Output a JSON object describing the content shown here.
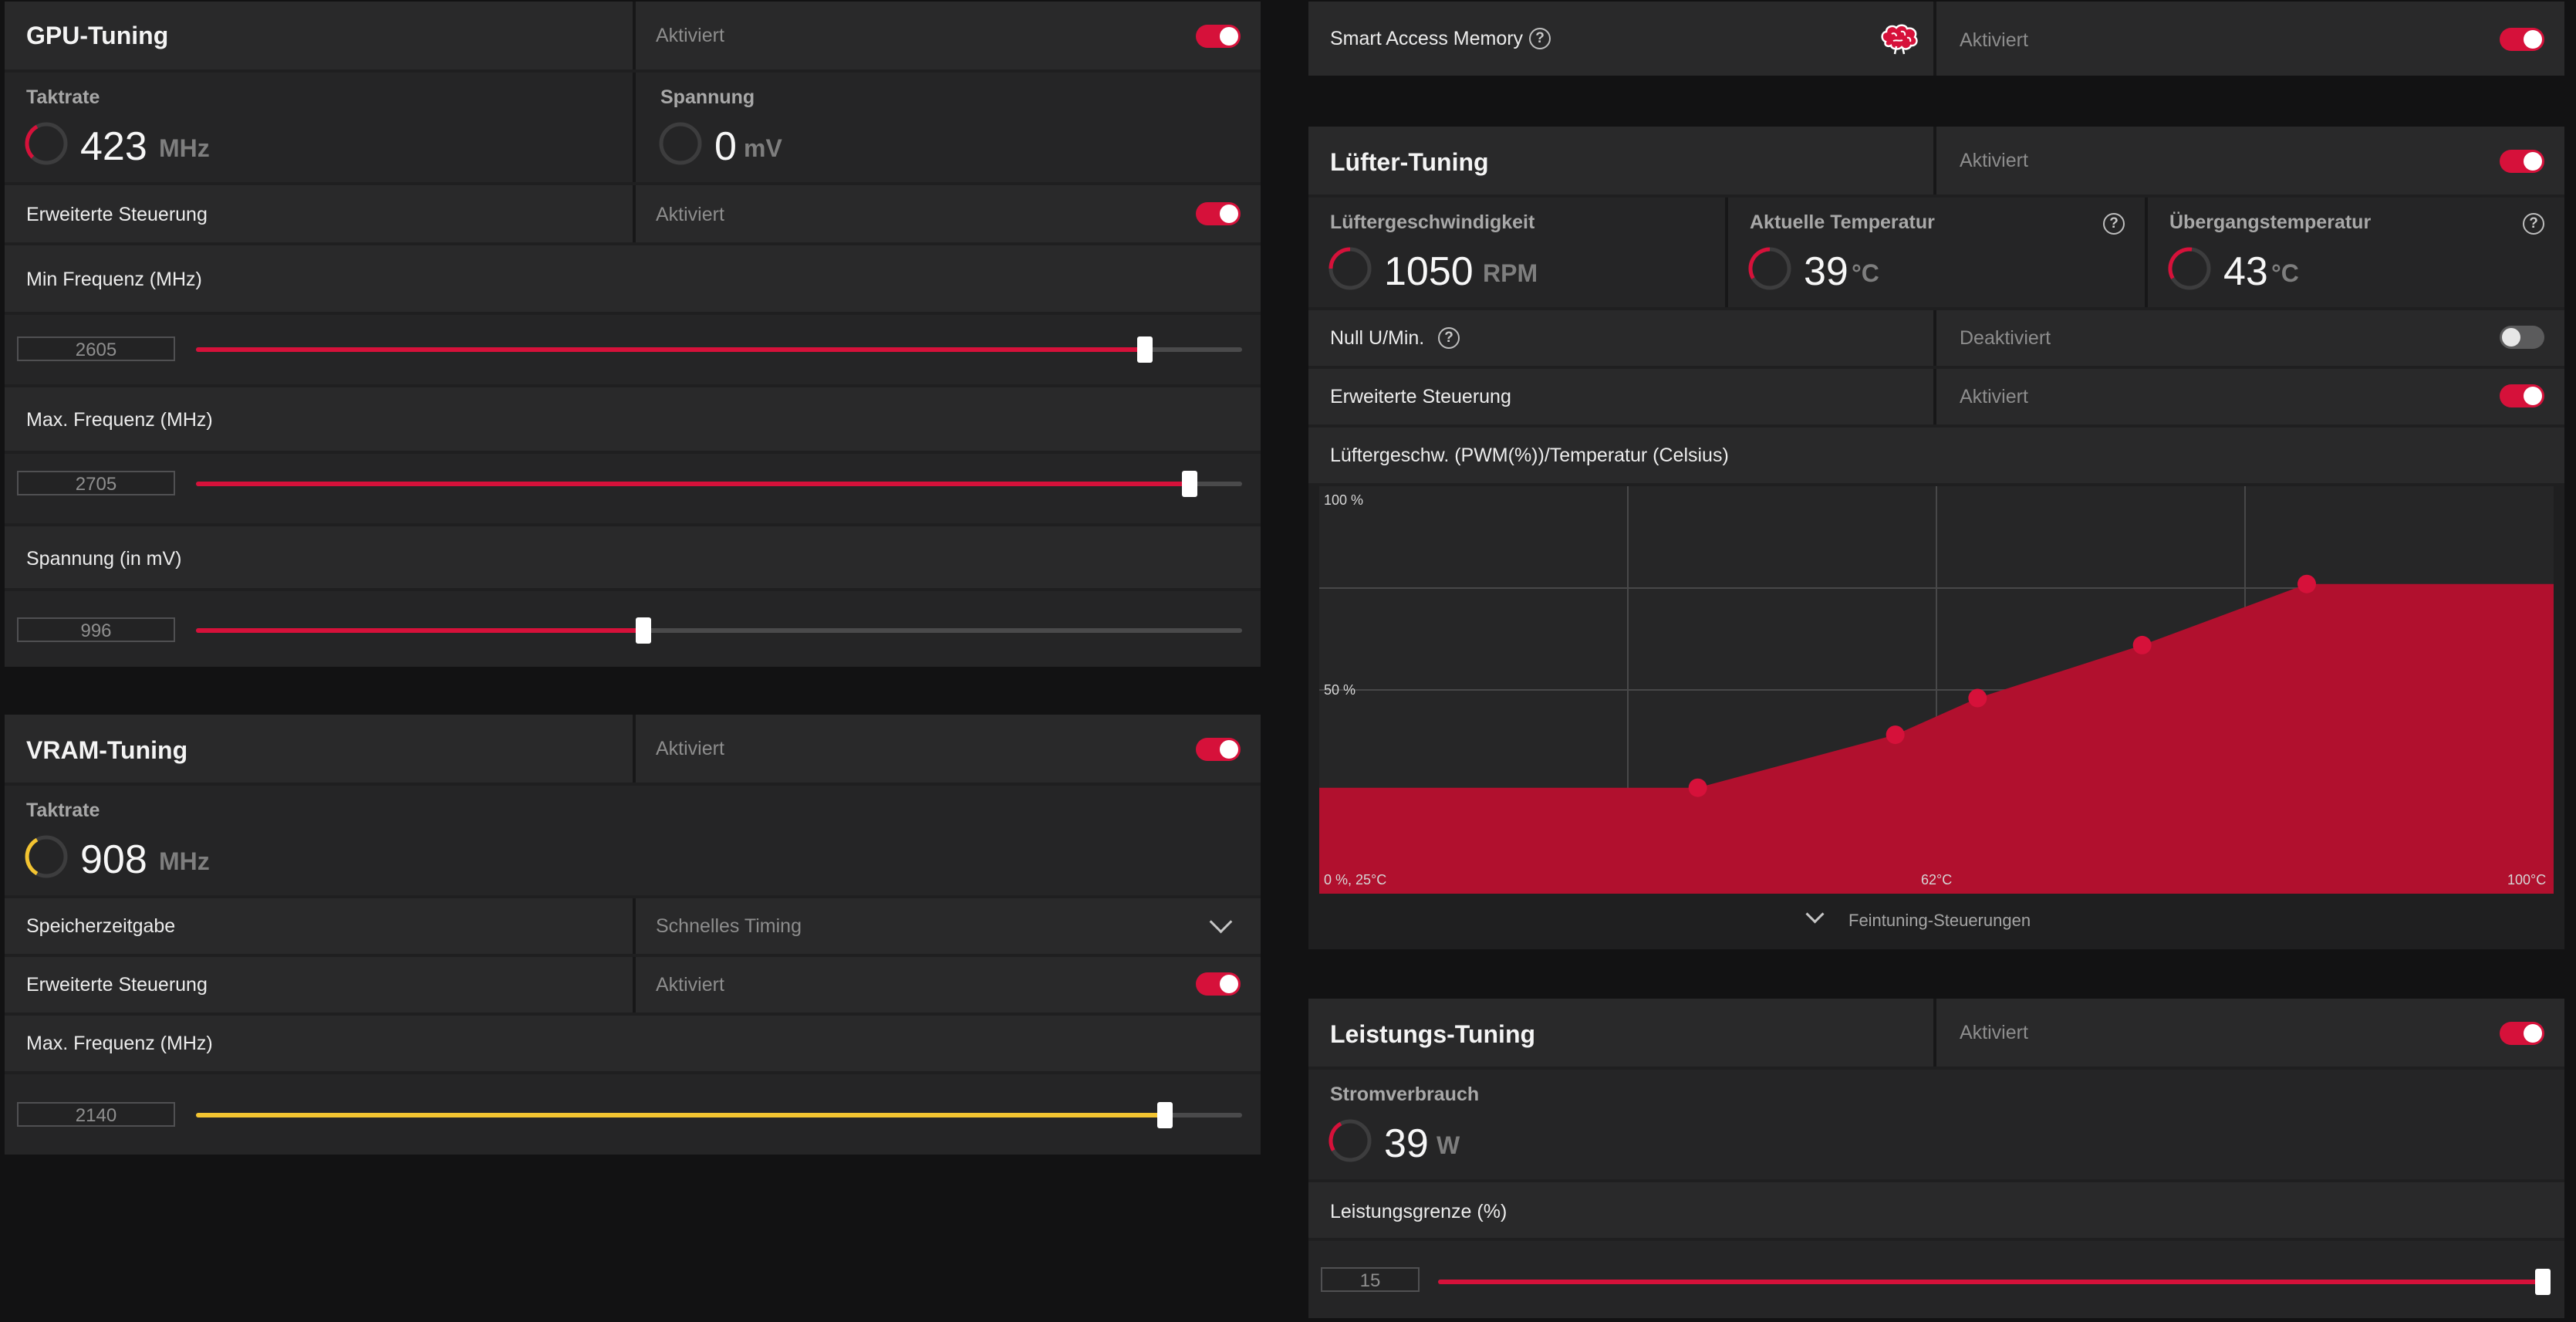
{
  "colors": {
    "accent": "#d6113a",
    "vram_accent": "#f3c431",
    "panel": "#1f1f20",
    "row": "#29292a"
  },
  "gpu_tuning": {
    "title": "GPU-Tuning",
    "status": "Aktiviert",
    "enabled": true,
    "clock": {
      "label": "Taktrate",
      "value": "423",
      "unit": "MHz"
    },
    "voltage": {
      "label": "Spannung",
      "value": "0",
      "unit": "mV"
    },
    "advanced": {
      "label": "Erweiterte Steuerung",
      "status": "Aktiviert",
      "enabled": true
    },
    "min_freq": {
      "label": "Min Frequenz (MHz)",
      "value": "2605",
      "fraction": 0.907
    },
    "max_freq": {
      "label": "Max. Frequenz (MHz)",
      "value": "2705",
      "fraction": 0.95
    },
    "voltage_slider": {
      "label": "Spannung (in mV)",
      "value": "996",
      "fraction": 0.428
    }
  },
  "vram_tuning": {
    "title": "VRAM-Tuning",
    "status": "Aktiviert",
    "enabled": true,
    "clock": {
      "label": "Taktrate",
      "value": "908",
      "unit": "MHz"
    },
    "memory_timing": {
      "label": "Speicherzeitgabe",
      "value": "Schnelles Timing"
    },
    "advanced": {
      "label": "Erweiterte Steuerung",
      "status": "Aktiviert",
      "enabled": true
    },
    "max_freq": {
      "label": "Max. Frequenz (MHz)",
      "value": "2140",
      "fraction": 0.926
    }
  },
  "smart_access_memory": {
    "label": "Smart Access Memory",
    "status": "Aktiviert",
    "enabled": true,
    "icon": "brain-icon"
  },
  "fan_tuning": {
    "title": "Lüfter-Tuning",
    "status": "Aktiviert",
    "enabled": true,
    "fan_speed": {
      "label": "Lüftergeschwindigkeit",
      "value": "1050",
      "unit": "RPM"
    },
    "current_temp": {
      "label": "Aktuelle Temperatur",
      "value": "39",
      "unit": "°C"
    },
    "junction_temp": {
      "label": "Übergangstemperatur",
      "value": "43",
      "unit": "°C"
    },
    "zero_rpm": {
      "label": "Null U/Min.",
      "status": "Deaktiviert",
      "enabled": false
    },
    "advanced": {
      "label": "Erweiterte Steuerung",
      "status": "Aktiviert",
      "enabled": true
    },
    "curve_title": "Lüftergeschw. (PWM(%))/Temperatur (Celsius)",
    "fine_tuning": "Feintuning-Steuerungen"
  },
  "chart_data": {
    "type": "area",
    "title": "Lüftergeschw. (PWM(%))/Temperatur (Celsius)",
    "x_axis_labels": [
      "0 %, 25°C",
      "62°C",
      "100°C"
    ],
    "y_axis_labels": [
      "100 %",
      "50 %"
    ],
    "xlim": [
      25,
      100
    ],
    "ylim": [
      0,
      100
    ],
    "points": [
      {
        "x": 48,
        "y": 26
      },
      {
        "x": 60,
        "y": 39
      },
      {
        "x": 65,
        "y": 48
      },
      {
        "x": 75,
        "y": 61
      },
      {
        "x": 85,
        "y": 76
      }
    ]
  },
  "power_tuning": {
    "title": "Leistungs-Tuning",
    "status": "Aktiviert",
    "enabled": true,
    "power": {
      "label": "Stromverbrauch",
      "value": "39",
      "unit": "W"
    },
    "power_limit": {
      "label": "Leistungsgrenze (%)",
      "value": "15",
      "fraction": 1.0
    }
  }
}
